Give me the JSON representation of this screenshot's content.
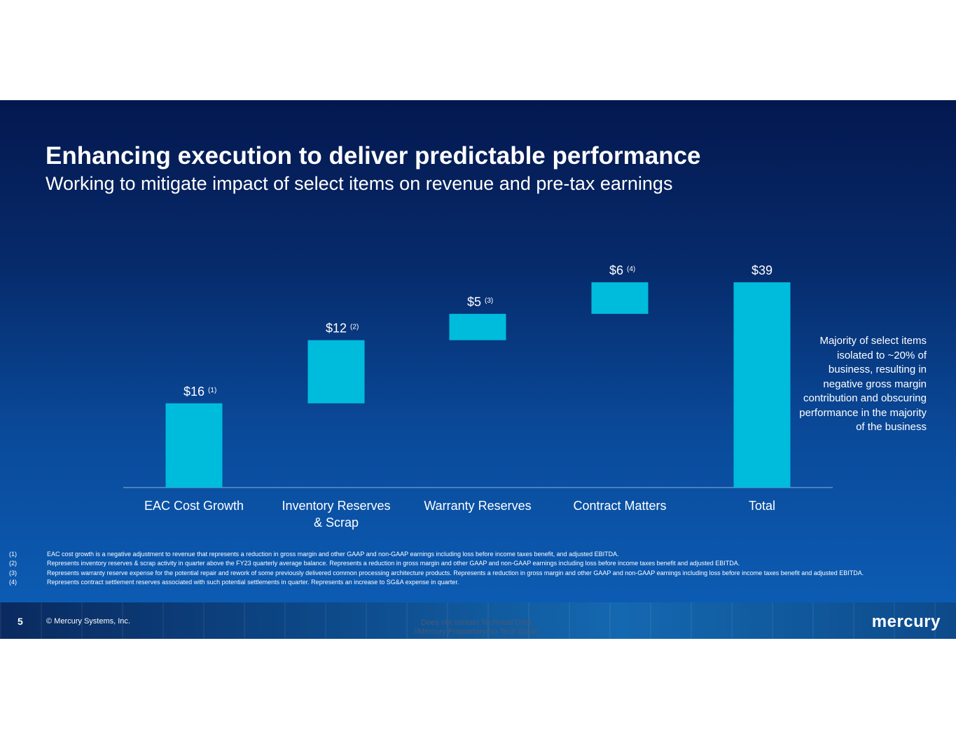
{
  "slide": {
    "title": "Enhancing execution to deliver predictable performance",
    "subtitle": "Working to mitigate impact of select items on revenue and pre-tax earnings",
    "side_note": "Majority of select items isolated to ~20% of business, resulting in negative gross margin contribution and obscuring performance in the majority of the business"
  },
  "chart_data": {
    "type": "waterfall",
    "unit": "$M",
    "bar_color": "#00bcdc",
    "categories": [
      "EAC Cost Growth",
      "Inventory Reserves & Scrap",
      "Warranty Reserves",
      "Contract Matters",
      "Total"
    ],
    "category_lines": [
      [
        "EAC Cost Growth"
      ],
      [
        "Inventory Reserves",
        "& Scrap"
      ],
      [
        "Warranty Reserves"
      ],
      [
        "Contract Matters"
      ],
      [
        "Total"
      ]
    ],
    "values": [
      16,
      12,
      5,
      6,
      39
    ],
    "bases": [
      0,
      16,
      28,
      33,
      0
    ],
    "data_labels": [
      "$16",
      "$12",
      "$5",
      "$6",
      "$39"
    ],
    "footnote_refs": [
      "(1)",
      "(2)",
      "(3)",
      "(4)",
      ""
    ],
    "ylim": [
      0,
      39
    ]
  },
  "footnotes": [
    {
      "num": "(1)",
      "text": "EAC cost growth is a negative adjustment to revenue that represents a reduction in gross margin and other GAAP and non-GAAP earnings including loss before income taxes benefit, and adjusted EBITDA."
    },
    {
      "num": "(2)",
      "text": "Represents inventory reserves & scrap activity in quarter above the FY23 quarterly average balance. Represents a reduction in gross margin and other GAAP and non-GAAP earnings including loss before income taxes benefit and adjusted EBITDA."
    },
    {
      "num": "(3)",
      "text": "Represents warranty reserve expense for the potential repair and rework of some previously delivered common processing architecture products. Represents a reduction in gross margin and other GAAP and non-GAAP earnings including loss before income taxes benefit and adjusted EBITDA."
    },
    {
      "num": "(4)",
      "text": "Represents contract settlement reserves associated with such potential settlements in quarter. Represents an increase to SG&A expense in quarter."
    }
  ],
  "footer": {
    "page_number": "5",
    "copyright": "© Mercury Systems, Inc.",
    "classification_line1": "Does not contain Technical Data",
    "classification_line2": "//Mercury Proprietary/No Tech Data//",
    "logo": "mercury"
  }
}
